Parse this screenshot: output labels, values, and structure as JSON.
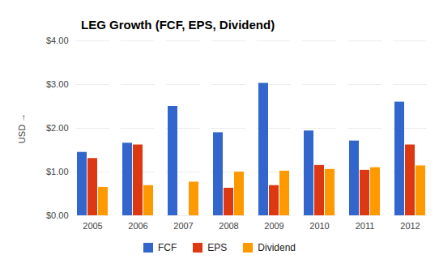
{
  "chart_data": {
    "type": "bar",
    "title": "LEG Growth (FCF, EPS, Dividend)",
    "y_label": "USD",
    "categories": [
      "2005",
      "2006",
      "2007",
      "2008",
      "2009",
      "2010",
      "2011",
      "2012"
    ],
    "series": [
      {
        "name": "FCF",
        "color": "#3366cc",
        "values": [
          1.45,
          1.66,
          2.5,
          1.9,
          3.03,
          1.94,
          1.71,
          2.6
        ]
      },
      {
        "name": "EPS",
        "color": "#dc3912",
        "values": [
          1.31,
          1.62,
          0,
          0.63,
          0.69,
          1.15,
          1.04,
          1.62
        ]
      },
      {
        "name": "Dividend",
        "color": "#ff9900",
        "values": [
          0.65,
          0.69,
          0.77,
          1.0,
          1.02,
          1.06,
          1.1,
          1.14
        ]
      }
    ],
    "ylim": [
      0,
      4
    ],
    "yticks": [
      {
        "value": 0,
        "label": "$0.00"
      },
      {
        "value": 1,
        "label": "$1.00"
      },
      {
        "value": 2,
        "label": "$2.00"
      },
      {
        "value": 3,
        "label": "$3.00"
      },
      {
        "value": 4,
        "label": "$4.00"
      }
    ],
    "grid": true,
    "legend": "bottom"
  }
}
